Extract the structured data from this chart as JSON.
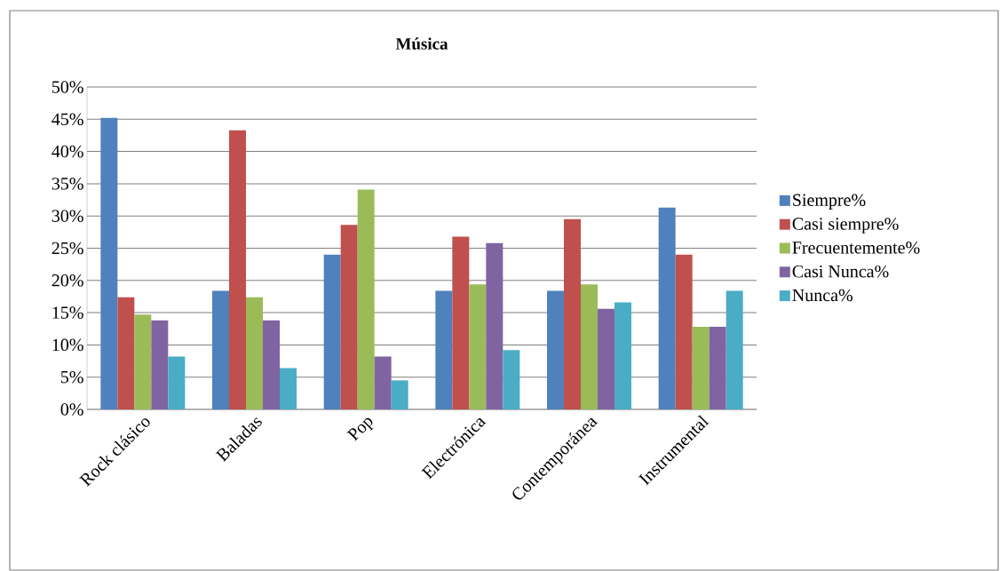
{
  "chart_data": {
    "type": "bar",
    "title": "Música",
    "categories": [
      "Rock clásico",
      "Baladas",
      "Pop",
      "Electrónica",
      "Contemporánea",
      "Instrumental"
    ],
    "series": [
      {
        "name": "Siempre%",
        "color": "#4f81bd",
        "values": [
          45.2,
          18.4,
          24.0,
          18.4,
          18.4,
          31.3
        ]
      },
      {
        "name": "Casi siempre%",
        "color": "#c0504d",
        "values": [
          17.4,
          43.3,
          28.6,
          26.8,
          29.5,
          24.0
        ]
      },
      {
        "name": "Frecuentemente%",
        "color": "#9bbb59",
        "values": [
          14.7,
          17.4,
          34.1,
          19.4,
          19.4,
          12.8
        ]
      },
      {
        "name": "Casi Nunca%",
        "color": "#8064a2",
        "values": [
          13.8,
          13.8,
          8.2,
          25.8,
          15.6,
          12.8
        ]
      },
      {
        "name": "Nunca%",
        "color": "#4bacc6",
        "values": [
          8.2,
          6.4,
          4.5,
          9.2,
          16.6,
          18.4
        ]
      }
    ],
    "ylim": [
      0,
      50
    ],
    "yticks": [
      {
        "value": 0,
        "label": "0%"
      },
      {
        "value": 5,
        "label": "5%"
      },
      {
        "value": 10,
        "label": "10%"
      },
      {
        "value": 15,
        "label": "15%"
      },
      {
        "value": 20,
        "label": "20%"
      },
      {
        "value": 25,
        "label": "25%"
      },
      {
        "value": 30,
        "label": "30%"
      },
      {
        "value": 35,
        "label": "35%"
      },
      {
        "value": 40,
        "label": "40%"
      },
      {
        "value": 45,
        "label": "45%"
      },
      {
        "value": 50,
        "label": "50%"
      }
    ],
    "grid": "y",
    "legend": "right"
  }
}
